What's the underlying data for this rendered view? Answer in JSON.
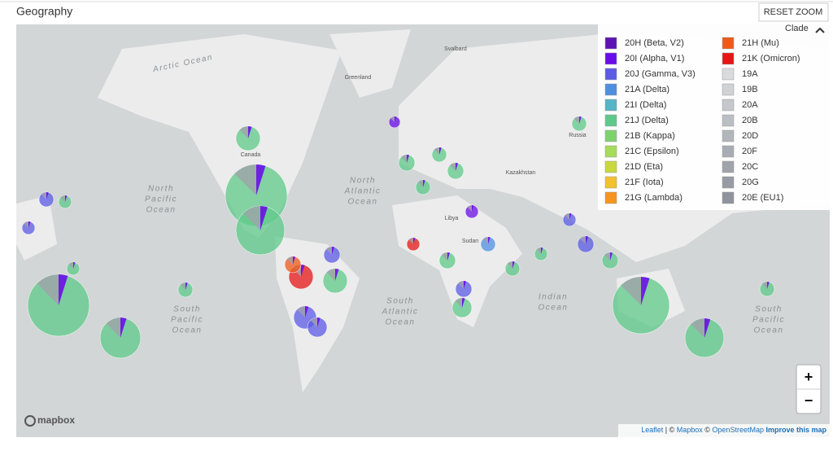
{
  "header": {
    "title": "Geography",
    "reset_button": "RESET ZOOM"
  },
  "legend": {
    "title": "Clade",
    "items": [
      {
        "label": "20H (Beta, V2)",
        "color": "#5c14b3"
      },
      {
        "label": "20I (Alpha, V1)",
        "color": "#6a0ee8"
      },
      {
        "label": "20J (Gamma, V3)",
        "color": "#5b5be6"
      },
      {
        "label": "21A (Delta)",
        "color": "#4f8fe0"
      },
      {
        "label": "21I (Delta)",
        "color": "#55b4c6"
      },
      {
        "label": "21J (Delta)",
        "color": "#5fc98a"
      },
      {
        "label": "21B (Kappa)",
        "color": "#7ed26c"
      },
      {
        "label": "21C (Epsilon)",
        "color": "#a6dc5a"
      },
      {
        "label": "21D (Eta)",
        "color": "#c9d93c"
      },
      {
        "label": "21F (Iota)",
        "color": "#f2c12e"
      },
      {
        "label": "21G (Lambda)",
        "color": "#f5951f"
      },
      {
        "label": "21H (Mu)",
        "color": "#ef5a1a"
      },
      {
        "label": "21K (Omicron)",
        "color": "#e51616"
      },
      {
        "label": "19A",
        "color": "#dadbdc"
      },
      {
        "label": "19B",
        "color": "#d0d2d4"
      },
      {
        "label": "20A",
        "color": "#c5c7ca"
      },
      {
        "label": "20B",
        "color": "#bbbec2"
      },
      {
        "label": "20D",
        "color": "#b2b5ba"
      },
      {
        "label": "20F",
        "color": "#a9acb2"
      },
      {
        "label": "20C",
        "color": "#a0a3aa"
      },
      {
        "label": "20G",
        "color": "#989ba3"
      },
      {
        "label": "20E (EU1)",
        "color": "#90939c"
      }
    ]
  },
  "map_labels": [
    {
      "lines": [
        "Arctic Ocean"
      ]
    },
    {
      "lines": [
        "Greenland"
      ]
    },
    {
      "lines": [
        "Svalbard"
      ]
    },
    {
      "lines": [
        "Canada"
      ]
    },
    {
      "lines": [
        "Russia"
      ]
    },
    {
      "lines": [
        "Kazakhstan"
      ]
    },
    {
      "lines": [
        "Libya"
      ]
    },
    {
      "lines": [
        "Sudan"
      ]
    },
    {
      "lines": [
        "North",
        "Pacific",
        "Ocean"
      ]
    },
    {
      "lines": [
        "North",
        "Atlantic",
        "Ocean"
      ]
    },
    {
      "lines": [
        "South",
        "Pacific",
        "Ocean"
      ]
    },
    {
      "lines": [
        "South",
        "Atlantic",
        "Ocean"
      ]
    },
    {
      "lines": [
        "Indian",
        "Ocean"
      ]
    },
    {
      "lines": [
        "South",
        "Pacific",
        "Ocean"
      ]
    }
  ],
  "controls": {
    "zoom_in": "+",
    "zoom_out": "−",
    "logo": "mapbox"
  },
  "attribution": [
    "Leaflet",
    " | © ",
    "Mapbox",
    " © ",
    "OpenStreetMap",
    " Improve this map"
  ]
}
